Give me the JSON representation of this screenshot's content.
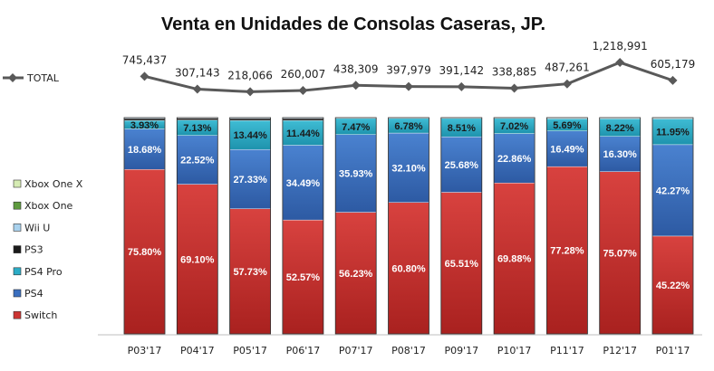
{
  "chart_data": {
    "type": "bar",
    "stacked": true,
    "title": "Venta en Unidades de Consolas  Caseras,  JP.",
    "categories": [
      "P03'17",
      "P04'17",
      "P05'17",
      "P06'17",
      "P07'17",
      "P08'17",
      "P09'17",
      "P10'17",
      "P11'17",
      "P12'17",
      "P01'17"
    ],
    "series": [
      {
        "name": "Switch",
        "color": "#cc3533",
        "values": [
          75.8,
          69.1,
          57.73,
          52.57,
          56.23,
          60.8,
          65.51,
          69.88,
          77.28,
          75.07,
          45.22
        ],
        "labels": [
          "75.80%",
          "69.10%",
          "57.73%",
          "52.57%",
          "56.23%",
          "60.80%",
          "65.51%",
          "69.88%",
          "77.28%",
          "75.07%",
          "45.22%"
        ]
      },
      {
        "name": "PS4",
        "color": "#3a6fbf",
        "values": [
          18.68,
          22.52,
          27.33,
          34.49,
          35.93,
          32.1,
          25.68,
          22.86,
          16.49,
          16.3,
          42.27
        ],
        "labels": [
          "18.68%",
          "22.52%",
          "27.33%",
          "34.49%",
          "35.93%",
          "32.10%",
          "25.68%",
          "22.86%",
          "16.49%",
          "16.30%",
          "42.27%"
        ]
      },
      {
        "name": "PS4 Pro",
        "color": "#2bacc6",
        "values": [
          3.93,
          7.13,
          13.44,
          11.44,
          7.47,
          6.78,
          8.51,
          7.02,
          5.69,
          8.22,
          11.95
        ],
        "labels": [
          "3.93%",
          "7.13%",
          "13.44%",
          "11.44%",
          "7.47%",
          "6.78%",
          "8.51%",
          "7.02%",
          "5.69%",
          "8.22%",
          "11.95%"
        ]
      },
      {
        "name": "PS3",
        "color": "#1a1a1a",
        "values": [
          0.9,
          0.8,
          0.9,
          0.9,
          0.2,
          0.2,
          0.2,
          0.2,
          0.2,
          0.2,
          0.2
        ]
      },
      {
        "name": "Wii U",
        "color": "#a9d2ee",
        "values": [
          0.3,
          0.2,
          0.3,
          0.3,
          0.1,
          0.1,
          0.1,
          0.1,
          0.1,
          0.1,
          0.1
        ]
      },
      {
        "name": "Xbox One",
        "color": "#5e9b3e",
        "values": [
          0.1,
          0.1,
          0.1,
          0.1,
          0.05,
          0.05,
          0.05,
          0.05,
          0.05,
          0.05,
          0.05
        ]
      },
      {
        "name": "Xbox One X",
        "color": "#d6ecb4",
        "values": [
          0.0,
          0.0,
          0.0,
          0.0,
          0.0,
          0.0,
          0.0,
          0.0,
          0.1,
          0.1,
          0.2
        ]
      }
    ],
    "total": {
      "name": "TOTAL",
      "color": "#595959",
      "values": [
        745437,
        307143,
        218066,
        260007,
        438309,
        397979,
        391142,
        338885,
        487261,
        1218991,
        605179
      ],
      "labels": [
        "745,437",
        "307,143",
        "218,066",
        "260,007",
        "438,309",
        "397,979",
        "391,142",
        "338,885",
        "487,261",
        "1,218,991",
        "605,179"
      ]
    },
    "legend": {
      "position": "left",
      "order": [
        "Xbox One X",
        "Xbox One",
        "Wii U",
        "PS3",
        "PS4 Pro",
        "PS4",
        "Switch"
      ]
    },
    "ylim": [
      0,
      100
    ]
  }
}
